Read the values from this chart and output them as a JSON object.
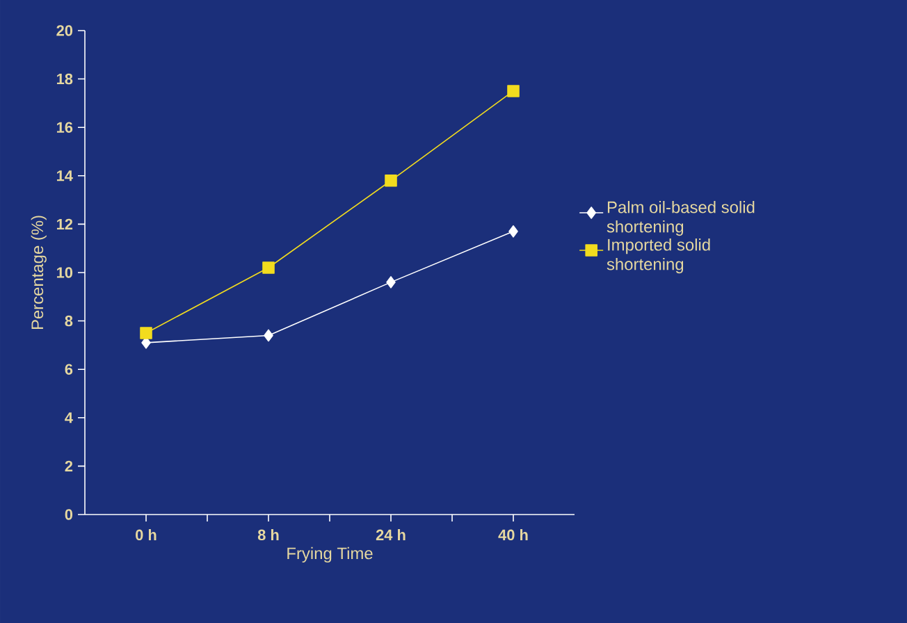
{
  "chart_data": {
    "type": "line",
    "xlabel": "Frying Time",
    "ylabel": "Percentage (%)",
    "categories": [
      "0 h",
      "8 h",
      "24 h",
      "40 h"
    ],
    "series": [
      {
        "name": "Palm oil-based solid shortening",
        "color": "#ffffff",
        "marker": "diamond",
        "values": [
          7.1,
          7.4,
          9.6,
          11.7
        ]
      },
      {
        "name": "Imported solid shortening",
        "color": "#f2dc1e",
        "marker": "square",
        "values": [
          7.5,
          10.2,
          13.8,
          17.5
        ]
      }
    ],
    "ylim": [
      0,
      20
    ],
    "yticks": [
      0,
      2,
      4,
      6,
      8,
      10,
      12,
      14,
      16,
      18,
      20
    ],
    "legend": "right",
    "grid": false
  }
}
